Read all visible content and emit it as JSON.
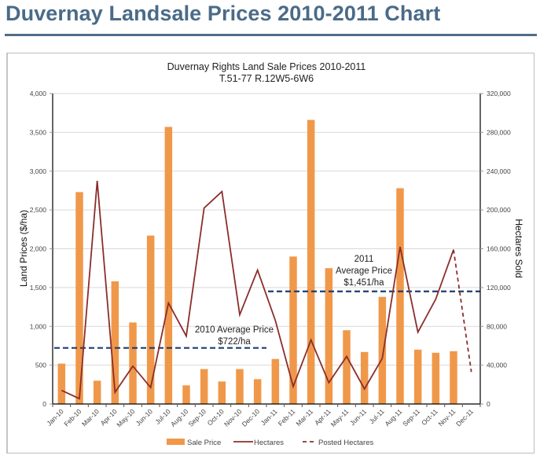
{
  "page": {
    "title": "Duvernay Landsale Prices 2010-2011 Chart"
  },
  "chart_data": {
    "type": "bar",
    "title": "Duvernay Rights Land Sale Prices 2010-2011",
    "subtitle": "T.51-77 R.12W5-6W6",
    "xlabel": "",
    "ylabel": "Land Prices ($/ha)",
    "y2label": "Hectares Sold",
    "ylim": [
      0,
      4000
    ],
    "y2lim": [
      0,
      320000
    ],
    "yticks": [
      "0",
      "500",
      "1,000",
      "1,500",
      "2,000",
      "2,500",
      "3,000",
      "3,500",
      "4,000"
    ],
    "y2ticks": [
      "0",
      "40,000",
      "80,000",
      "120,000",
      "160,000",
      "200,000",
      "240,000",
      "280,000",
      "320,000"
    ],
    "grid": true,
    "legend_position": "bottom",
    "categories": [
      "Jan-10",
      "Feb-10",
      "Mar-10",
      "Apr-10",
      "May-10",
      "Jun-10",
      "Jul-10",
      "Aug-10",
      "Sep-10",
      "Oct-10",
      "Nov-10",
      "Dec-10",
      "Jan-11",
      "Feb-11",
      "Mar-11",
      "Apr-11",
      "May-11",
      "Jun-11",
      "Jul-11",
      "Aug-11",
      "Sep-11",
      "Oct-11",
      "Nov-11",
      "Dec-11"
    ],
    "series": [
      {
        "name": "Sale Price",
        "type": "bar",
        "axis": "left",
        "color": "#f0984a",
        "values": [
          520,
          2730,
          300,
          1580,
          1050,
          2170,
          3570,
          240,
          450,
          290,
          450,
          320,
          580,
          1900,
          3660,
          1750,
          950,
          670,
          1380,
          2780,
          700,
          660,
          680,
          null
        ]
      },
      {
        "name": "Hectares",
        "type": "line",
        "axis": "right",
        "color": "#8b2e2b",
        "values": [
          14000,
          5500,
          230000,
          12000,
          39000,
          17000,
          104000,
          70000,
          202000,
          219000,
          92000,
          138000,
          86000,
          18000,
          66000,
          22000,
          49000,
          15500,
          47000,
          162000,
          74000,
          108000,
          159000,
          null
        ]
      },
      {
        "name": "Posted Hectares",
        "type": "line-dashed",
        "axis": "right",
        "color": "#8b2e2b",
        "values": [
          null,
          null,
          null,
          null,
          null,
          null,
          null,
          null,
          null,
          null,
          null,
          null,
          null,
          null,
          null,
          null,
          null,
          null,
          null,
          null,
          null,
          null,
          159000,
          33000
        ]
      }
    ],
    "annotations": [
      {
        "name": "2010 Average Price",
        "label_line1": "2010 Average Price",
        "label_line2": "$722/ha",
        "value": 722,
        "from": "Jan-10",
        "to": "Dec-10",
        "color": "#1f3d6e"
      },
      {
        "name": "2011 Average Price",
        "label_line1": "2011",
        "label_line2": "Average Price",
        "label_line3": "$1,451/ha",
        "value": 1451,
        "from": "Jan-11",
        "to": "Dec-11",
        "color": "#1f3d6e"
      }
    ],
    "legend": [
      {
        "label": "Sale Price",
        "kind": "bar",
        "color": "#f0984a"
      },
      {
        "label": "Hectares",
        "kind": "line",
        "color": "#8b2e2b"
      },
      {
        "label": "Posted Hectares",
        "kind": "dashed",
        "color": "#8b2e2b"
      }
    ]
  }
}
